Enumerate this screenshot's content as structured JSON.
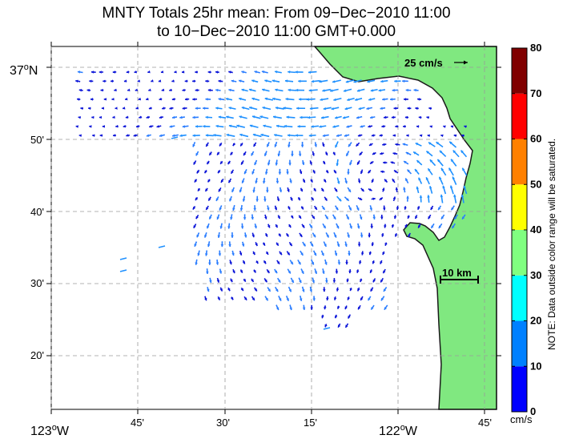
{
  "title_line1": "MNTY Totals 25hr mean: From 09−Dec−2010 11:00",
  "title_line2": "to 10−Dec−2010 11:00 GMT+0.000",
  "lat_labels": [
    {
      "deg": "37",
      "sup": "o",
      "hemi": "N"
    },
    {
      "text": "50'"
    },
    {
      "text": "40'"
    },
    {
      "text": "30'"
    },
    {
      "text": "20'"
    }
  ],
  "lon_labels": [
    {
      "deg": "123",
      "sup": "o",
      "hemi": "W"
    },
    {
      "text": "45'"
    },
    {
      "text": "30'"
    },
    {
      "text": "15'"
    },
    {
      "deg": "122",
      "sup": "o",
      "hemi": "W"
    },
    {
      "text": "45'"
    }
  ],
  "vector_legend": "25 cm/s",
  "scale_bar": "10 km",
  "colorbar": {
    "ticks": [
      "0",
      "10",
      "20",
      "30",
      "40",
      "50",
      "60",
      "70",
      "80"
    ],
    "colors": [
      "#0000ff",
      "#0080ff",
      "#00ffff",
      "#80ff80",
      "#ffff00",
      "#ff8000",
      "#ff0000",
      "#800000"
    ],
    "unit": "cm/s",
    "note": "NOTE: Data outside color range will be saturated."
  },
  "colors": {
    "land": "#80e880",
    "coast": "#222222",
    "grid": "#9a9a9a"
  }
}
